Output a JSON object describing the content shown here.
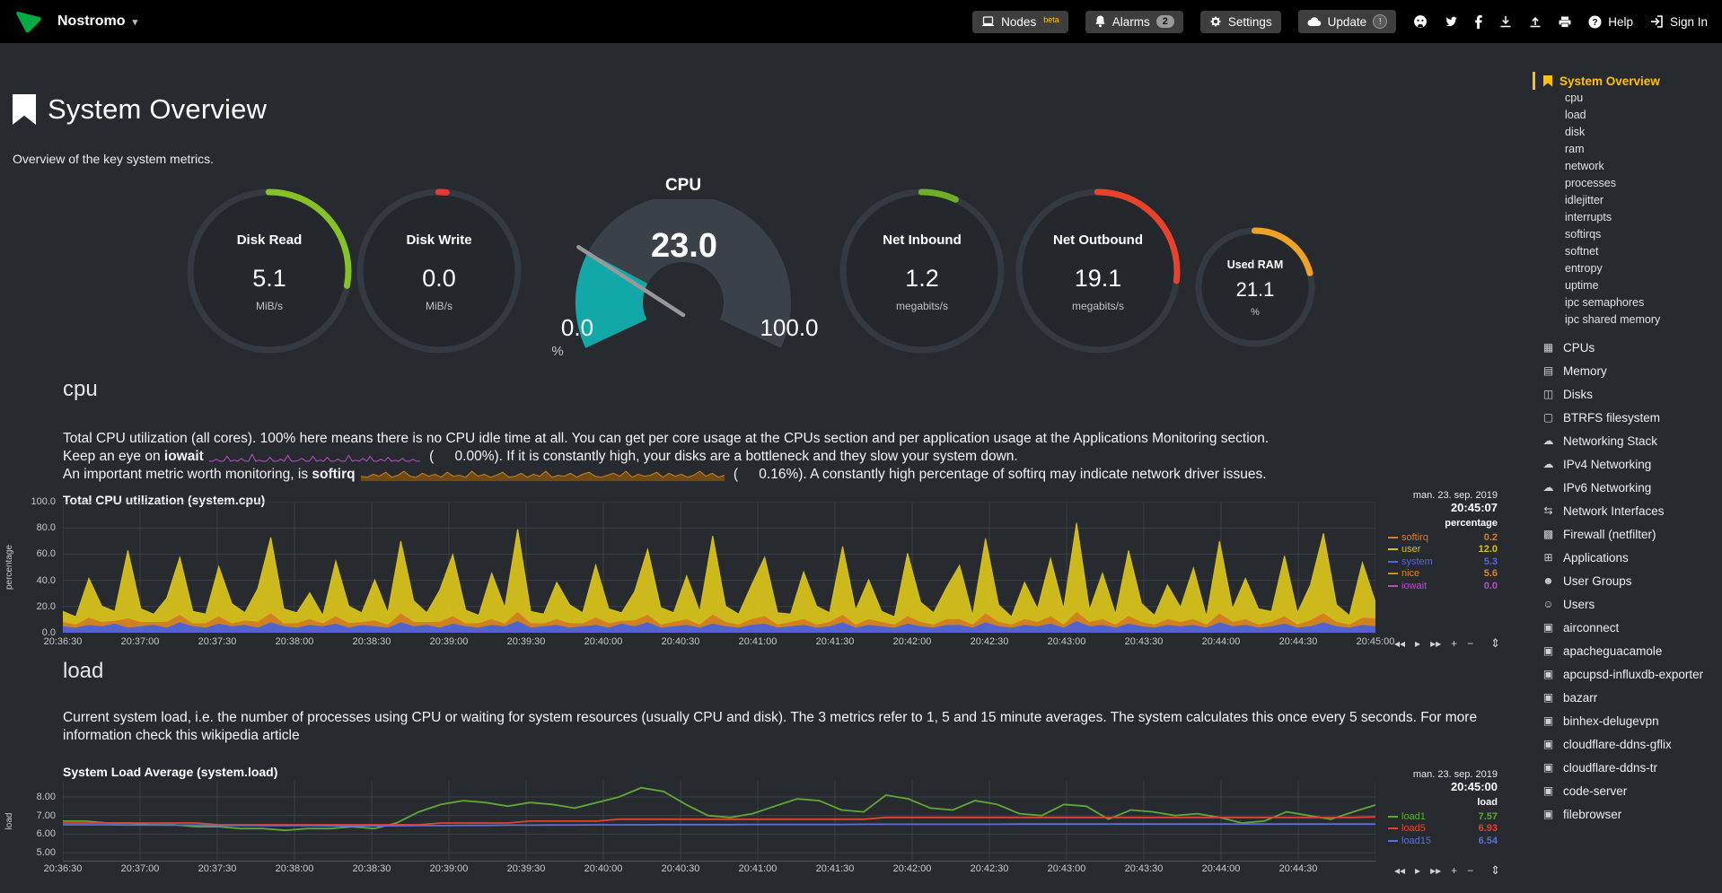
{
  "topbar": {
    "brand": "Nostromo",
    "nodes_label": "Nodes",
    "nodes_badge": "beta",
    "alarms_label": "Alarms",
    "alarms_badge": "2",
    "settings_label": "Settings",
    "update_label": "Update",
    "update_badge": "!",
    "help_label": "Help",
    "signin_label": "Sign In"
  },
  "header": {
    "title": "System Overview",
    "subtitle": "Overview of the key system metrics."
  },
  "gauges": {
    "donuts": [
      {
        "id": "disk_read",
        "title": "Disk Read",
        "value": "5.1",
        "unit": "MiB/s",
        "percent": 28,
        "color": "#86C226",
        "size": "normal"
      },
      {
        "id": "disk_write",
        "title": "Disk Write",
        "value": "0.0",
        "unit": "MiB/s",
        "percent": 1.5,
        "color": "#E53935",
        "size": "normal"
      },
      {
        "id": "net_inbound",
        "title": "Net Inbound",
        "value": "1.2",
        "unit": "megabits/s",
        "percent": 7,
        "color": "#6FAF25",
        "size": "normal"
      },
      {
        "id": "net_outbound",
        "title": "Net Outbound",
        "value": "19.1",
        "unit": "megabits/s",
        "percent": 27,
        "color": "#E8432A",
        "size": "normal"
      },
      {
        "id": "used_ram",
        "title": "Used RAM",
        "value": "21.1",
        "unit": "%",
        "percent": 21,
        "color": "#EFA226",
        "size": "small"
      }
    ],
    "cpu": {
      "title": "CPU",
      "value": "23.0",
      "min": "0.0",
      "max": "100.0",
      "unit": "%",
      "percent": 23,
      "color": "#13A8A8",
      "track_color": "#3A4149",
      "needle_color": "#989898"
    }
  },
  "cpu_section": {
    "heading": "cpu",
    "desc1": "Total CPU utilization (all cores). 100% here means there is no CPU idle time at all. You can get per core usage at the CPUs section and per application usage at the Applications Monitoring section.",
    "line2_pre": "Keep an eye on ",
    "line2_term": "iowait",
    "line2_post": " (   0.00%). If it is constantly high, your disks are a bottleneck and they slow your system down.",
    "line3_pre": "An important metric worth monitoring, is ",
    "line3_term": "softirq",
    "line3_post": " (   0.16%). A constantly high percentage of softirq may indicate network driver issues."
  },
  "load_section": {
    "heading": "load",
    "desc": "Current system load, i.e. the number of processes using CPU or waiting for system resources (usually CPU and disk). The 3 metrics refer to 1, 5 and 15 minute averages. The system calculates this once every 5 seconds. For more information check this wikipedia article"
  },
  "cpu_chart": {
    "title": "Total CPU utilization (system.cpu)",
    "date": "man. 23. sep. 2019",
    "time": "20:45:07",
    "unit_header": "percentage",
    "ylabel": "percentage",
    "y_ticks": [
      "100.0",
      "80.0",
      "60.0",
      "40.0",
      "20.0",
      "0.0"
    ],
    "x_ticks": [
      "20:36:30",
      "20:37:00",
      "20:37:30",
      "20:38:00",
      "20:38:30",
      "20:39:00",
      "20:39:30",
      "20:40:00",
      "20:40:30",
      "20:41:00",
      "20:41:30",
      "20:42:00",
      "20:42:30",
      "20:43:00",
      "20:43:30",
      "20:44:00",
      "20:44:30",
      "20:45:00"
    ],
    "legend": [
      {
        "name": "softirq",
        "value": "0.2",
        "color": "#DE7A28"
      },
      {
        "name": "user",
        "value": "12.0",
        "color": "#D6C11A"
      },
      {
        "name": "system",
        "value": "5.3",
        "color": "#5566D6"
      },
      {
        "name": "nice",
        "value": "5.6",
        "color": "#D8861F"
      },
      {
        "name": "iowait",
        "value": "0.0",
        "color": "#B84FC4"
      }
    ]
  },
  "load_chart": {
    "title": "System Load Average (system.load)",
    "date": "man. 23. sep. 2019",
    "time": "20:45:00",
    "unit_header": "load",
    "ylabel": "load",
    "y_ticks": [
      "8.00",
      "7.00",
      "6.00",
      "5.00"
    ],
    "x_ticks": [
      "20:36:30",
      "20:37:00",
      "20:37:30",
      "20:38:00",
      "20:38:30",
      "20:39:00",
      "20:39:30",
      "20:40:00",
      "20:40:30",
      "20:41:00",
      "20:41:30",
      "20:42:00",
      "20:42:30",
      "20:43:00",
      "20:43:30",
      "20:44:00",
      "20:44:30"
    ],
    "legend": [
      {
        "name": "load1",
        "value": "7.57",
        "color": "#5FA838"
      },
      {
        "name": "load5",
        "value": "6.93",
        "color": "#E0442E"
      },
      {
        "name": "load15",
        "value": "6.54",
        "color": "#5B6FD6"
      }
    ]
  },
  "chart_toolbar": [
    "◂◂",
    "▸",
    "▸▸",
    "+",
    "−"
  ],
  "chart_toolbar_names": [
    "pan-left-button",
    "play-button",
    "pan-right-button",
    "zoom-in-button",
    "zoom-out-button"
  ],
  "resize_glyph": "⇕",
  "chart_data": {
    "cpu": {
      "type": "area",
      "stacked": true,
      "ylim": [
        0,
        100
      ],
      "x_start": "20:36:30",
      "x_end": "20:45:00",
      "series": [
        {
          "name": "system",
          "color": "#5566D6",
          "values": [
            5,
            4,
            6,
            5,
            7,
            4,
            5,
            6,
            4,
            8,
            5,
            4,
            7,
            5,
            6,
            4,
            8,
            5,
            4,
            6,
            5,
            7,
            4,
            6,
            5,
            4,
            8,
            5,
            6,
            4,
            7,
            5,
            4,
            6,
            5,
            9,
            4,
            5,
            6,
            4,
            5,
            6,
            4,
            7,
            5,
            8,
            4,
            5,
            6,
            4,
            7,
            5,
            4,
            6,
            7,
            4,
            5,
            6,
            4,
            5,
            8,
            4,
            6,
            5,
            4,
            7,
            5,
            4,
            6,
            6,
            4,
            8,
            5,
            4,
            6,
            5,
            7,
            4,
            9,
            5,
            6,
            4,
            7,
            5,
            4,
            6,
            5,
            6,
            4,
            8,
            5,
            6,
            4,
            5,
            7,
            4,
            5,
            8,
            5,
            4,
            6,
            5
          ]
        },
        {
          "name": "nice",
          "color": "#D8861F",
          "values": [
            3,
            2,
            5,
            3,
            2,
            6,
            3,
            2,
            4,
            5,
            2,
            3,
            5,
            2,
            3,
            4,
            6,
            2,
            3,
            4,
            2,
            5,
            3,
            2,
            4,
            2,
            6,
            3,
            2,
            4,
            5,
            2,
            3,
            4,
            2,
            6,
            3,
            2,
            4,
            3,
            2,
            5,
            3,
            2,
            4,
            5,
            2,
            3,
            4,
            2,
            6,
            3,
            2,
            4,
            5,
            2,
            3,
            4,
            2,
            3,
            5,
            2,
            4,
            3,
            2,
            5,
            3,
            2,
            4,
            4,
            2,
            6,
            3,
            2,
            4,
            3,
            5,
            2,
            6,
            3,
            4,
            2,
            5,
            3,
            2,
            4,
            3,
            4,
            2,
            6,
            3,
            4,
            2,
            3,
            5,
            2,
            4,
            6,
            3,
            2,
            5,
            6
          ]
        },
        {
          "name": "softirq",
          "color": "#DE7A28",
          "values": [
            0.3,
            0.2,
            0.6,
            0.3,
            0.2,
            0.9,
            0.3,
            0.2,
            0.5,
            0.7,
            0.2,
            0.3,
            0.6,
            0.2,
            0.3,
            0.5,
            0.9,
            0.2,
            0.3,
            0.5,
            0.2,
            0.7,
            0.3,
            0.2,
            0.5,
            0.2,
            0.9,
            0.3,
            0.2,
            0.5,
            0.7,
            0.2,
            0.3,
            0.5,
            0.2,
            1.0,
            0.3,
            0.2,
            0.5,
            0.3,
            0.2,
            0.7,
            0.3,
            0.2,
            0.5,
            0.8,
            0.2,
            0.3,
            0.5,
            0.2,
            0.9,
            0.3,
            0.2,
            0.5,
            0.7,
            0.2,
            0.3,
            0.5,
            0.2,
            0.3,
            0.8,
            0.2,
            0.5,
            0.3,
            0.2,
            0.7,
            0.3,
            0.2,
            0.5,
            0.5,
            0.2,
            0.9,
            0.3,
            0.2,
            0.5,
            0.3,
            0.7,
            0.2,
            1.0,
            0.3,
            0.5,
            0.2,
            0.8,
            0.3,
            0.2,
            0.5,
            0.3,
            0.5,
            0.2,
            0.9,
            0.3,
            0.5,
            0.2,
            0.3,
            0.7,
            0.2,
            0.5,
            0.9,
            0.3,
            0.2,
            0.6,
            0.2
          ]
        },
        {
          "name": "user",
          "color": "#D6C11A",
          "values": [
            8,
            6,
            30,
            12,
            7,
            52,
            10,
            6,
            18,
            44,
            9,
            7,
            38,
            15,
            6,
            25,
            58,
            11,
            8,
            20,
            6,
            42,
            13,
            7,
            31,
            9,
            55,
            16,
            7,
            24,
            47,
            10,
            6,
            35,
            12,
            63,
            9,
            7,
            28,
            14,
            8,
            40,
            11,
            6,
            22,
            50,
            13,
            7,
            33,
            10,
            60,
            12,
            8,
            26,
            45,
            9,
            6,
            36,
            14,
            7,
            52,
            11,
            30,
            8,
            6,
            48,
            15,
            9,
            24,
            41,
            7,
            57,
            13,
            6,
            28,
            10,
            44,
            12,
            68,
            9,
            35,
            8,
            50,
            14,
            7,
            26,
            11,
            39,
            6,
            55,
            10,
            31,
            12,
            8,
            46,
            9,
            27,
            61,
            13,
            7,
            42,
            12
          ]
        }
      ]
    },
    "load": {
      "type": "line",
      "ylim": [
        4.52,
        8.87
      ],
      "series": [
        {
          "name": "load1",
          "color": "#5FA838",
          "values": [
            6.7,
            6.7,
            6.6,
            6.6,
            6.5,
            6.5,
            6.4,
            6.4,
            6.3,
            6.3,
            6.2,
            6.3,
            6.3,
            6.4,
            6.3,
            6.6,
            7.2,
            7.6,
            7.8,
            7.7,
            7.5,
            7.7,
            7.6,
            7.4,
            7.7,
            8.0,
            8.5,
            8.3,
            7.6,
            7.0,
            6.9,
            7.1,
            7.5,
            7.9,
            7.8,
            7.3,
            7.2,
            8.1,
            7.9,
            7.4,
            7.3,
            7.8,
            7.6,
            7.1,
            7.0,
            7.6,
            7.5,
            6.8,
            7.3,
            7.2,
            7.0,
            7.1,
            6.9,
            6.6,
            6.7,
            7.2,
            7.0,
            6.8,
            7.2,
            7.57
          ]
        },
        {
          "name": "load5",
          "color": "#E0442E",
          "values": [
            6.6,
            6.6,
            6.6,
            6.6,
            6.6,
            6.6,
            6.6,
            6.5,
            6.5,
            6.5,
            6.5,
            6.5,
            6.5,
            6.5,
            6.5,
            6.5,
            6.5,
            6.6,
            6.6,
            6.6,
            6.6,
            6.7,
            6.7,
            6.7,
            6.7,
            6.8,
            6.8,
            6.8,
            6.8,
            6.8,
            6.8,
            6.8,
            6.8,
            6.8,
            6.8,
            6.8,
            6.8,
            6.9,
            6.9,
            6.9,
            6.9,
            6.9,
            6.9,
            6.9,
            6.9,
            6.9,
            6.9,
            6.9,
            6.9,
            6.9,
            6.9,
            6.9,
            6.9,
            6.9,
            6.9,
            6.9,
            6.9,
            6.9,
            6.9,
            6.93
          ]
        },
        {
          "name": "load15",
          "color": "#5B6FD6",
          "values": [
            6.5,
            6.5,
            6.5,
            6.49,
            6.49,
            6.48,
            6.48,
            6.47,
            6.47,
            6.46,
            6.46,
            6.46,
            6.45,
            6.45,
            6.45,
            6.45,
            6.46,
            6.46,
            6.47,
            6.47,
            6.48,
            6.48,
            6.49,
            6.49,
            6.5,
            6.5,
            6.5,
            6.51,
            6.51,
            6.51,
            6.51,
            6.52,
            6.52,
            6.52,
            6.52,
            6.52,
            6.53,
            6.53,
            6.53,
            6.53,
            6.53,
            6.53,
            6.53,
            6.54,
            6.54,
            6.54,
            6.54,
            6.54,
            6.54,
            6.54,
            6.54,
            6.54,
            6.54,
            6.54,
            6.54,
            6.54,
            6.54,
            6.54,
            6.54,
            6.54
          ]
        }
      ]
    },
    "iowait_sparkline": {
      "type": "line",
      "color": "#B84FC4",
      "values": [
        0.1,
        0.1,
        0.3,
        0.1,
        0.1,
        0.6,
        0.1,
        0.2,
        0.1,
        0.4,
        0.1,
        0.1,
        0.8,
        0.1,
        0.2,
        0.1,
        0.1,
        0.5,
        0.1,
        0.1,
        0.3,
        0.1,
        0.7,
        0.1,
        0.1,
        0.2,
        0.4,
        0.1,
        0.1,
        0.6,
        0.1,
        0.2,
        0.1,
        0.5,
        0.1,
        0.1,
        0.3,
        0.1,
        0.1,
        0.7,
        0.1,
        0.2,
        0.1,
        0.4,
        0.1,
        0.6,
        0.1,
        0.1,
        0.3,
        0.1,
        0.5,
        0.1,
        0.2,
        0.1,
        0.4,
        0.1,
        0.1,
        0.3,
        0.1,
        0.1
      ]
    },
    "softirq_sparkline": {
      "type": "area",
      "color": "#C9821E",
      "values": [
        0.4,
        0.3,
        0.6,
        0.4,
        0.8,
        0.3,
        0.5,
        0.9,
        0.4,
        0.3,
        0.7,
        0.4,
        0.6,
        0.3,
        0.8,
        0.4,
        0.5,
        0.3,
        0.9,
        0.4,
        0.6,
        0.3,
        0.5,
        0.8,
        0.3,
        0.4,
        0.7,
        0.3,
        0.6,
        0.4,
        0.9,
        0.3,
        0.5,
        0.4,
        0.7,
        0.3,
        0.6,
        0.8,
        0.4,
        0.3,
        0.5,
        0.7,
        0.4,
        0.9,
        0.3,
        0.6,
        0.4,
        0.5,
        0.8,
        0.3,
        0.7,
        0.4,
        0.6,
        0.3,
        0.5,
        0.9,
        0.4,
        0.7,
        0.3,
        0.5
      ]
    }
  },
  "sidebar": {
    "selected_label": "System Overview",
    "sub_items": [
      "cpu",
      "load",
      "disk",
      "ram",
      "network",
      "processes",
      "idlejitter",
      "interrupts",
      "softirqs",
      "softnet",
      "entropy",
      "uptime",
      "ipc semaphores",
      "ipc shared memory"
    ],
    "sections": [
      {
        "label": "CPUs",
        "icon": "cpu-icon"
      },
      {
        "label": "Memory",
        "icon": "memory-icon"
      },
      {
        "label": "Disks",
        "icon": "disk-icon"
      },
      {
        "label": "BTRFS filesystem",
        "icon": "folder-icon"
      },
      {
        "label": "Networking Stack",
        "icon": "cloud-icon"
      },
      {
        "label": "IPv4 Networking",
        "icon": "cloud-icon"
      },
      {
        "label": "IPv6 Networking",
        "icon": "cloud-icon"
      },
      {
        "label": "Network Interfaces",
        "icon": "interface-icon"
      },
      {
        "label": "Firewall (netfilter)",
        "icon": "firewall-icon"
      },
      {
        "label": "Applications",
        "icon": "apps-icon"
      },
      {
        "label": "User Groups",
        "icon": "groups-icon"
      },
      {
        "label": "Users",
        "icon": "user-icon"
      },
      {
        "label": "airconnect",
        "icon": "app-icon"
      },
      {
        "label": "apacheguacamole",
        "icon": "app-icon"
      },
      {
        "label": "apcupsd-influxdb-exporter",
        "icon": "app-icon"
      },
      {
        "label": "bazarr",
        "icon": "app-icon"
      },
      {
        "label": "binhex-delugevpn",
        "icon": "app-icon"
      },
      {
        "label": "cloudflare-ddns-gflix",
        "icon": "app-icon"
      },
      {
        "label": "cloudflare-ddns-tr",
        "icon": "app-icon"
      },
      {
        "label": "code-server",
        "icon": "app-icon"
      },
      {
        "label": "filebrowser",
        "icon": "app-icon"
      }
    ]
  },
  "icons": {
    "cpu-icon": "▦",
    "memory-icon": "▤",
    "disk-icon": "◫",
    "folder-icon": "▢",
    "cloud-icon": "☁",
    "interface-icon": "⇆",
    "firewall-icon": "▩",
    "apps-icon": "⊞",
    "groups-icon": "☻",
    "user-icon": "☺",
    "app-icon": "▣"
  }
}
